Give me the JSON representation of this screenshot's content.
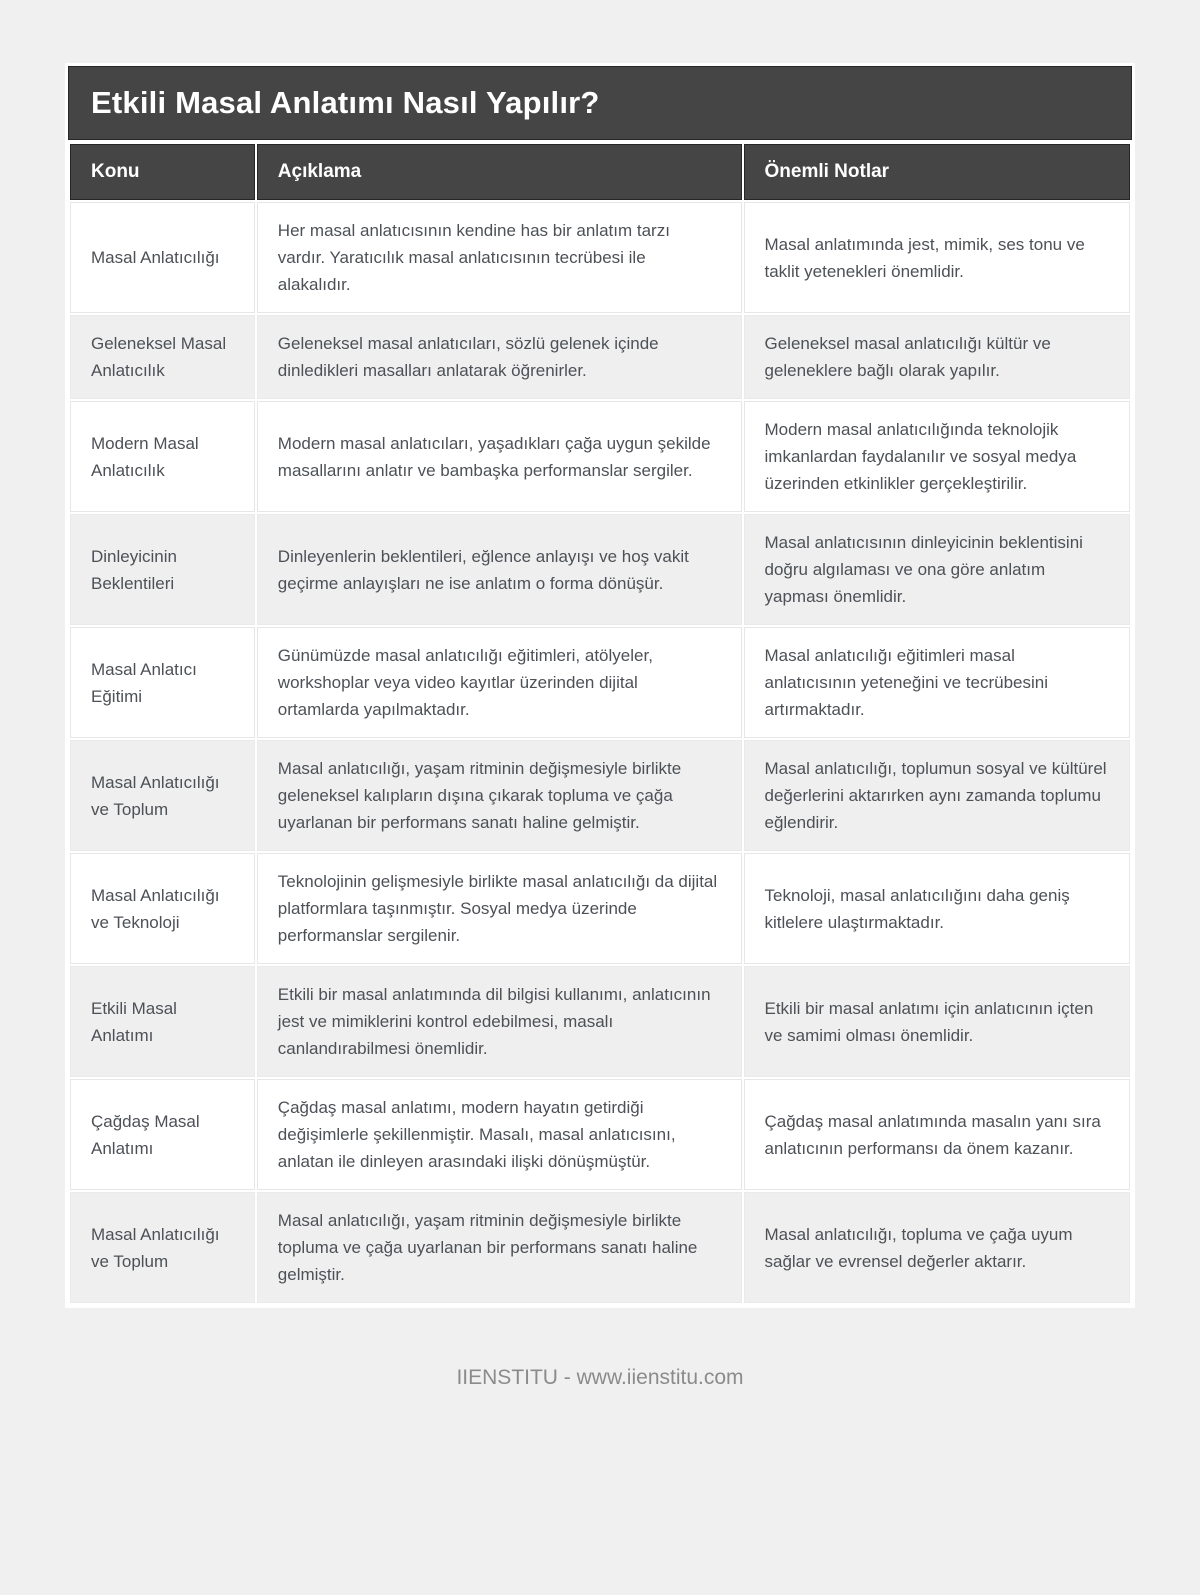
{
  "page": {
    "title": "Etkili Masal Anlatımı Nasıl Yapılır?",
    "footer": "IIENSTITU - www.iienstitu.com"
  },
  "colors": {
    "page_bg": "#f0f0f0",
    "card_bg": "#ffffff",
    "header_bg": "#454545",
    "header_border": "#262626",
    "header_text": "#ffffff",
    "row_alt_bg": "#efefef",
    "body_text": "#4d5156",
    "cell_border": "#e7e7e7",
    "footer_text": "#8b8b8b"
  },
  "table": {
    "columns": [
      "Konu",
      "Açıklama",
      "Önemli Notlar"
    ],
    "rows": [
      {
        "konu": "Masal Anlatıcılığı",
        "aciklama": "Her masal anlatıcısının kendine has bir anlatım tarzı vardır. Yaratıcılık masal anlatıcısının tecrübesi ile alakalıdır.",
        "notlar": "Masal anlatımında jest, mimik, ses tonu ve taklit yetenekleri önemlidir."
      },
      {
        "konu": "Geleneksel Masal Anlatıcılık",
        "aciklama": "Geleneksel masal anlatıcıları, sözlü gelenek içinde dinledikleri masalları anlatarak öğrenirler.",
        "notlar": "Geleneksel masal anlatıcılığı kültür ve geleneklere bağlı olarak yapılır."
      },
      {
        "konu": "Modern Masal Anlatıcılık",
        "aciklama": "Modern masal anlatıcıları, yaşadıkları çağa uygun şekilde masallarını anlatır ve bambaşka performanslar sergiler.",
        "notlar": "Modern masal anlatıcılığında teknolojik imkanlardan faydalanılır ve sosyal medya üzerinden etkinlikler gerçekleştirilir."
      },
      {
        "konu": "Dinleyicinin Beklentileri",
        "aciklama": "Dinleyenlerin beklentileri, eğlence anlayışı ve hoş vakit geçirme anlayışları ne ise anlatım o forma dönüşür.",
        "notlar": "Masal anlatıcısının dinleyicinin beklentisini doğru algılaması ve ona göre anlatım yapması önemlidir."
      },
      {
        "konu": "Masal Anlatıcı Eğitimi",
        "aciklama": "Günümüzde masal anlatıcılığı eğitimleri, atölyeler, workshoplar veya video kayıtlar üzerinden dijital ortamlarda yapılmaktadır.",
        "notlar": "Masal anlatıcılığı eğitimleri masal anlatıcısının yeteneğini ve tecrübesini artırmaktadır."
      },
      {
        "konu": "Masal Anlatıcılığı ve Toplum",
        "aciklama": "Masal anlatıcılığı, yaşam ritminin değişmesiyle birlikte geleneksel kalıpların dışına çıkarak topluma ve çağa uyarlanan bir performans sanatı haline gelmiştir.",
        "notlar": "Masal anlatıcılığı, toplumun sosyal ve kültürel değerlerini aktarırken aynı zamanda toplumu eğlendirir."
      },
      {
        "konu": "Masal Anlatıcılığı ve Teknoloji",
        "aciklama": "Teknolojinin gelişmesiyle birlikte masal anlatıcılığı da dijital platformlara taşınmıştır. Sosyal medya üzerinde performanslar sergilenir.",
        "notlar": "Teknoloji, masal anlatıcılığını daha geniş kitlelere ulaştırmaktadır."
      },
      {
        "konu": "Etkili Masal Anlatımı",
        "aciklama": "Etkili bir masal anlatımında dil bilgisi kullanımı, anlatıcının jest ve mimiklerini kontrol edebilmesi, masalı canlandırabilmesi önemlidir.",
        "notlar": "Etkili bir masal anlatımı için anlatıcının içten ve samimi olması önemlidir."
      },
      {
        "konu": "Çağdaş Masal Anlatımı",
        "aciklama": "Çağdaş masal anlatımı, modern hayatın getirdiği değişimlerle şekillenmiştir. Masalı, masal anlatıcısını, anlatan ile dinleyen arasındaki ilişki dönüşmüştür.",
        "notlar": "Çağdaş masal anlatımında masalın yanı sıra anlatıcının performansı da önem kazanır."
      },
      {
        "konu": "Masal Anlatıcılığı ve Toplum",
        "aciklama": "Masal anlatıcılığı, yaşam ritminin değişmesiyle birlikte topluma ve çağa uyarlanan bir performans sanatı haline gelmiştir.",
        "notlar": "Masal anlatıcılığı, topluma ve çağa uyum sağlar ve evrensel değerler aktarır."
      }
    ]
  }
}
